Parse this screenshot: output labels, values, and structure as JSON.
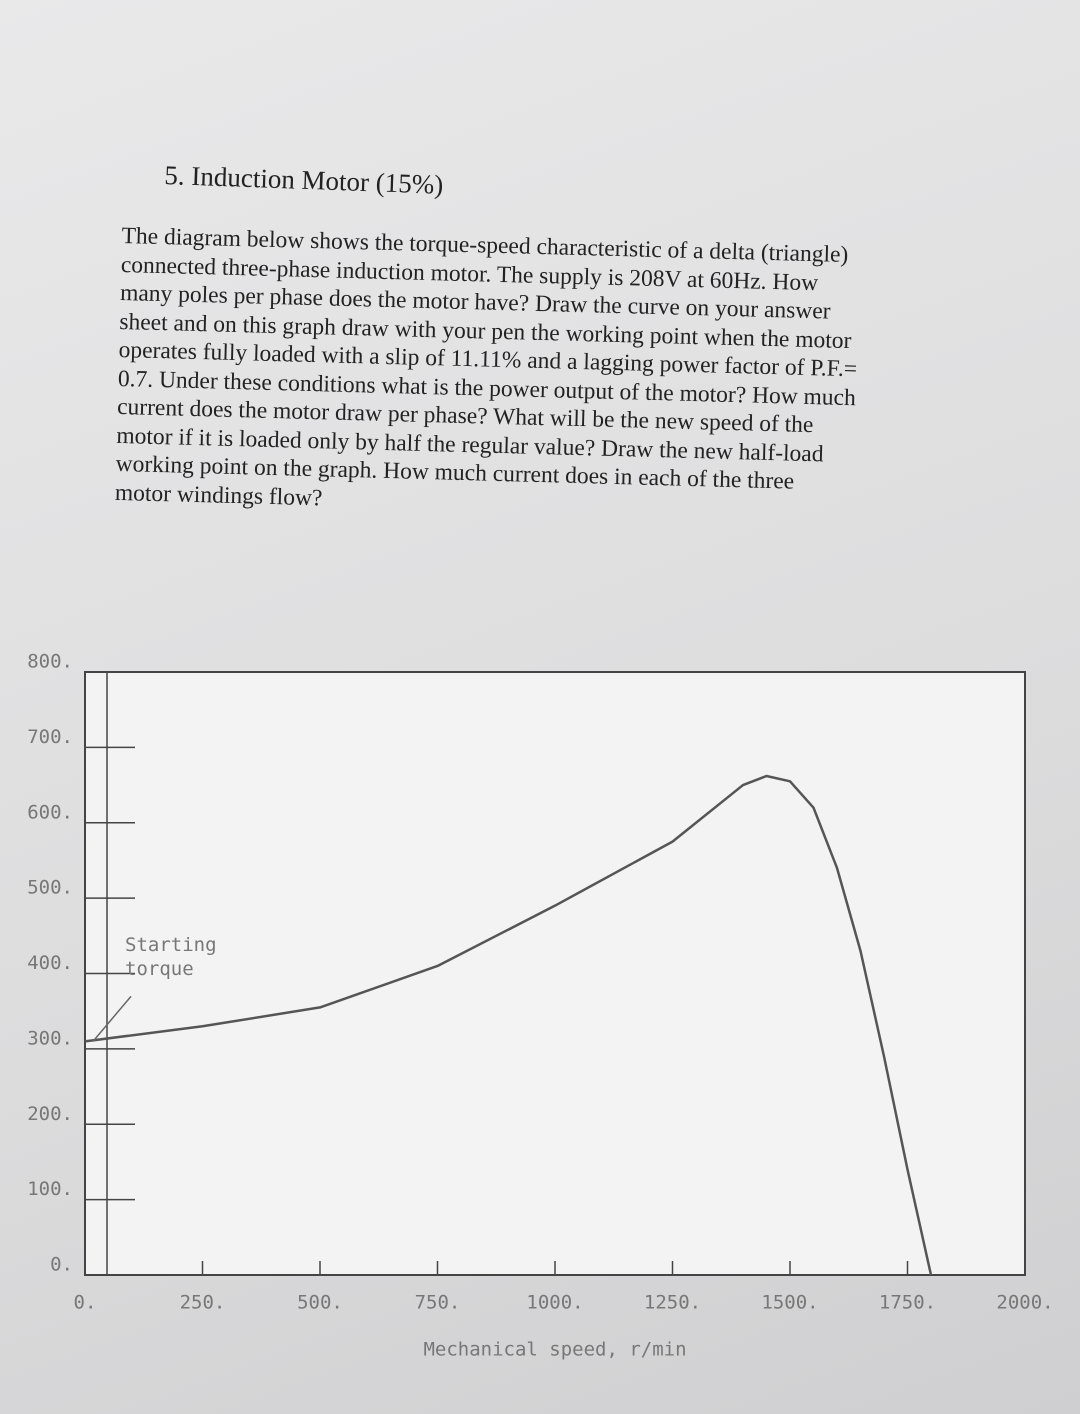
{
  "header": {
    "title": "5. Induction Motor (15%)"
  },
  "paragraph": "The diagram below shows the torque-speed characteristic of a delta (triangle) connected three-phase induction motor. The supply is 208V at 60Hz. How many poles per phase does the motor have? Draw the curve on your answer sheet and on this graph draw with your pen the working point when the motor operates fully loaded with a slip of 11.11% and a lagging power factor of P.F.= 0.7. Under these conditions what is the power output of the motor? How much current does the motor draw per phase? What will be the new speed of the motor if it is loaded only by half the regular value? Draw the new half-load working point on the graph. How much current does in each of the three motor windings flow?",
  "chart_data": {
    "type": "line",
    "xlabel": "Mechanical speed, r/min",
    "annotation": "Starting torque",
    "x": [
      0,
      250,
      500,
      750,
      1000,
      1250,
      1400,
      1450,
      1500,
      1550,
      1600,
      1650,
      1700,
      1750,
      1800
    ],
    "series": [
      {
        "color": "#555555",
        "values": [
          310,
          330,
          355,
          410,
          490,
          575,
          650,
          662,
          655,
          620,
          540,
          430,
          290,
          140,
          0
        ]
      }
    ],
    "xlim": [
      0,
      2000
    ],
    "xticks": [
      {
        "value": 0,
        "label": "0."
      },
      {
        "value": 250,
        "label": "250."
      },
      {
        "value": 500,
        "label": "500."
      },
      {
        "value": 750,
        "label": "750."
      },
      {
        "value": 1000,
        "label": "1000."
      },
      {
        "value": 1250,
        "label": "1250."
      },
      {
        "value": 1500,
        "label": "1500."
      },
      {
        "value": 1750,
        "label": "1750."
      },
      {
        "value": 2000,
        "label": "2000."
      }
    ],
    "ylim": [
      0,
      800
    ],
    "yticks": [
      {
        "value": 0,
        "label": "0."
      },
      {
        "value": 100,
        "label": "100."
      },
      {
        "value": 200,
        "label": "200."
      },
      {
        "value": 300,
        "label": "300."
      },
      {
        "value": 400,
        "label": "400."
      },
      {
        "value": 500,
        "label": "500."
      },
      {
        "value": 600,
        "label": "600."
      },
      {
        "value": 700,
        "label": "700."
      },
      {
        "value": 800,
        "label": "800."
      }
    ],
    "grid": false
  }
}
